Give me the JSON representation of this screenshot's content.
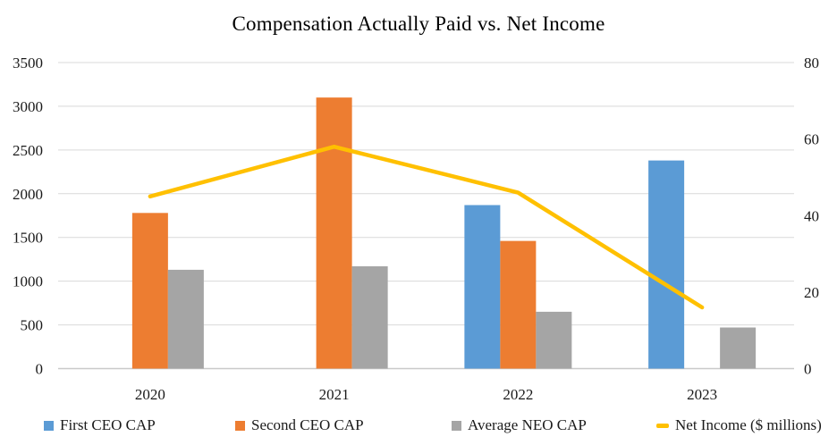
{
  "title": "Compensation Actually Paid vs. Net Income",
  "chart_data": {
    "type": "bar",
    "subtype": "grouped-bar-with-line-overlay",
    "title": "Compensation Actually Paid vs. Net Income",
    "categories": [
      "2020",
      "2021",
      "2022",
      "2023"
    ],
    "series": [
      {
        "name": "First CEO CAP",
        "type": "bar",
        "axis": "left",
        "color": "#5B9BD5",
        "values": [
          null,
          null,
          1870,
          2380
        ]
      },
      {
        "name": "Second CEO CAP",
        "type": "bar",
        "axis": "left",
        "color": "#ED7D31",
        "values": [
          1780,
          3100,
          1460,
          null
        ]
      },
      {
        "name": "Average NEO CAP",
        "type": "bar",
        "axis": "left",
        "color": "#A5A5A5",
        "values": [
          1130,
          1170,
          650,
          470
        ]
      },
      {
        "name": "Net Income ($ millions)",
        "type": "line",
        "axis": "right",
        "color": "#FFC000",
        "values": [
          45,
          58,
          46,
          16
        ]
      }
    ],
    "left_axis": {
      "min": 0,
      "max": 3500,
      "step": 500,
      "ticks": [
        0,
        500,
        1000,
        1500,
        2000,
        2500,
        3000,
        3500
      ]
    },
    "right_axis": {
      "min": 0,
      "max": 80,
      "step": 20,
      "ticks": [
        0,
        20,
        40,
        60,
        80
      ]
    },
    "grid": true,
    "legend_position": "bottom",
    "xlabel": "",
    "ylabel": ""
  },
  "colors": {
    "gridline": "#D9D9D9",
    "axis_line": "#C9C9C9",
    "text": "#1a1a1a",
    "background": "#ffffff"
  }
}
